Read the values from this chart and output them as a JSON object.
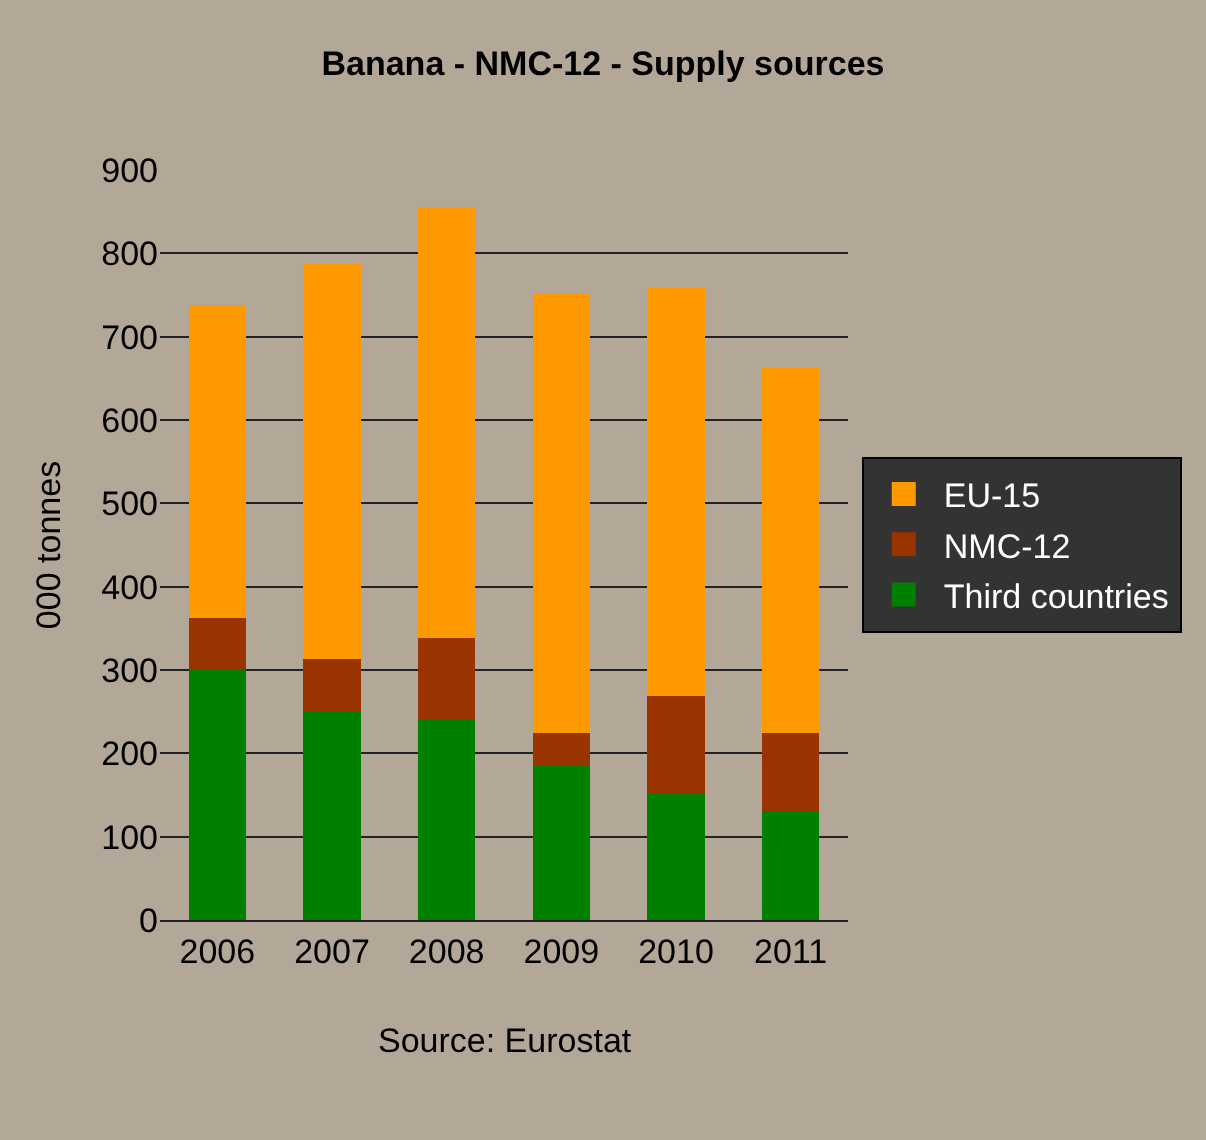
{
  "chart_data": {
    "type": "bar",
    "title": "Banana - NMC-12 - Supply sources",
    "ylabel": "000 tonnes",
    "categories": [
      "2006",
      "2007",
      "2008",
      "2009",
      "2010",
      "2011"
    ],
    "stacked": true,
    "series": [
      {
        "name": "Third countries",
        "color": "#008000",
        "values": [
          300,
          250,
          240,
          185,
          151,
          131
        ]
      },
      {
        "name": "NMC-12",
        "color": "#993300",
        "values": [
          62,
          63,
          98,
          40,
          118,
          94
        ]
      },
      {
        "name": "EU-15",
        "color": "#ff9900",
        "values": [
          376,
          474,
          518,
          526,
          489,
          438
        ]
      }
    ],
    "ylim": [
      0,
      900
    ],
    "yticks": [
      0,
      100,
      200,
      300,
      400,
      500,
      600,
      700,
      800,
      900
    ],
    "grid": "y",
    "legend": "right",
    "annotations": [
      "Source: Eurostat"
    ]
  }
}
